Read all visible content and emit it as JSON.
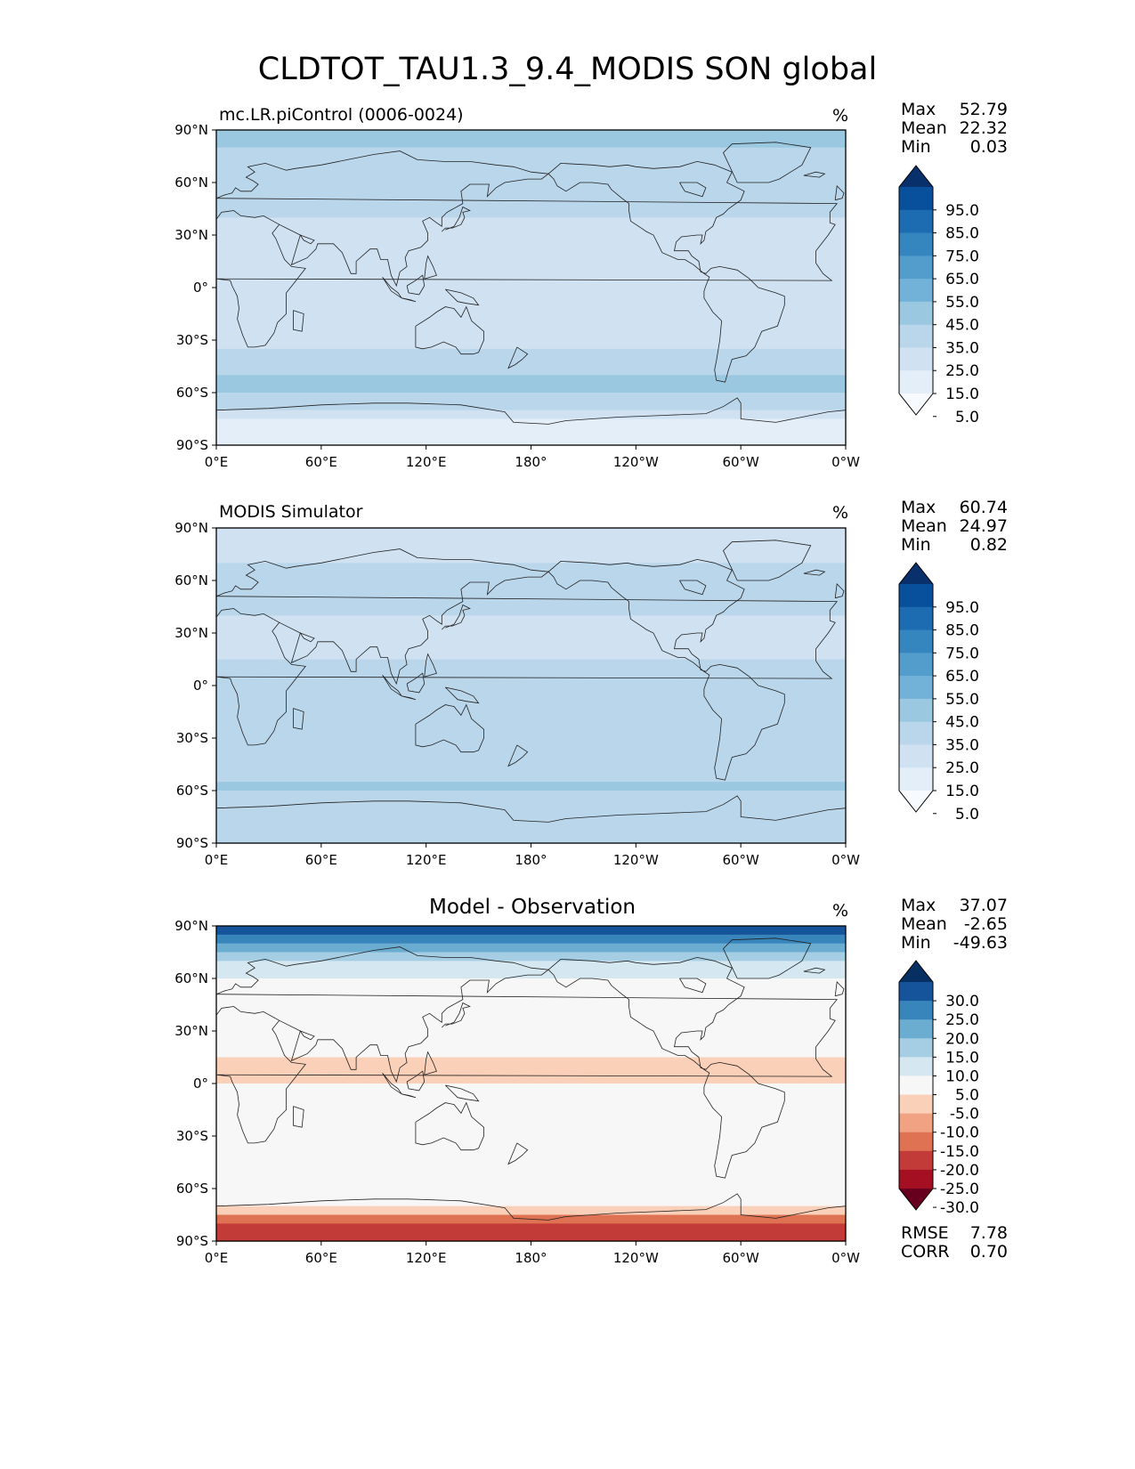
{
  "title": "CLDTOT_TAU1.3_9.4_MODIS SON global",
  "colors": {
    "blues": [
      "#f7fbff",
      "#e3eef9",
      "#d0e2f2",
      "#bad6eb",
      "#9ac8e0",
      "#73b2d8",
      "#529dcc",
      "#3585bf",
      "#1d6cb1",
      "#08509b",
      "#08306b"
    ],
    "diverging": [
      "#67001f",
      "#a50f22",
      "#c23b38",
      "#de7253",
      "#f0a283",
      "#fbd0b9",
      "#f7f7f7",
      "#d5e7f0",
      "#a5cde3",
      "#6bacd1",
      "#3885bc",
      "#15549b",
      "#053061"
    ],
    "coast": "#222222"
  },
  "x_ticks": [
    "0°E",
    "60°E",
    "120°E",
    "180°",
    "120°W",
    "60°W",
    "0°W"
  ],
  "y_ticks": [
    "90°N",
    "60°N",
    "30°N",
    "0°",
    "30°S",
    "60°S",
    "90°S"
  ],
  "panels": [
    {
      "id": "model",
      "title": "mc.LR.piControl (0006-0024)",
      "unit": "%",
      "stats": [
        {
          "name": "Max",
          "value": "52.79"
        },
        {
          "name": "Mean",
          "value": "22.32"
        },
        {
          "name": "Min",
          "value": "0.03"
        }
      ],
      "colorbar_ticks": [
        "95.0",
        "85.0",
        "75.0",
        "65.0",
        "55.0",
        "45.0",
        "35.0",
        "25.0",
        "15.0",
        "5.0"
      ]
    },
    {
      "id": "obs",
      "title": "MODIS Simulator",
      "unit": "%",
      "stats": [
        {
          "name": "Max",
          "value": "60.74"
        },
        {
          "name": "Mean",
          "value": "24.97"
        },
        {
          "name": "Min",
          "value": "0.82"
        }
      ],
      "colorbar_ticks": [
        "95.0",
        "85.0",
        "75.0",
        "65.0",
        "55.0",
        "45.0",
        "35.0",
        "25.0",
        "15.0",
        "5.0"
      ]
    },
    {
      "id": "diff",
      "title": "Model - Observation",
      "unit": "%",
      "stats": [
        {
          "name": "Max",
          "value": "37.07"
        },
        {
          "name": "Mean",
          "value": "-2.65"
        },
        {
          "name": "Min",
          "value": "-49.63"
        }
      ],
      "colorbar_ticks": [
        "30.0",
        "25.0",
        "20.0",
        "15.0",
        "10.0",
        "5.0",
        "-5.0",
        "-10.0",
        "-15.0",
        "-20.0",
        "-25.0",
        "-30.0"
      ],
      "metrics": [
        {
          "name": "RMSE",
          "value": "7.78"
        },
        {
          "name": "CORR",
          "value": "0.70"
        }
      ]
    }
  ],
  "chart_data": [
    {
      "type": "heatmap",
      "title": "mc.LR.piControl (0006-0024)",
      "xlabel": "",
      "ylabel": "",
      "xlim": [
        0,
        360
      ],
      "ylim": [
        -90,
        90
      ],
      "colorbar_levels": [
        5,
        15,
        25,
        35,
        45,
        55,
        65,
        75,
        85,
        95
      ],
      "zonal_mean_profile": [
        {
          "lat": 80,
          "value": 35
        },
        {
          "lat": 60,
          "value": 30
        },
        {
          "lat": 45,
          "value": 28
        },
        {
          "lat": 30,
          "value": 18
        },
        {
          "lat": 15,
          "value": 20
        },
        {
          "lat": 0,
          "value": 25
        },
        {
          "lat": -15,
          "value": 22
        },
        {
          "lat": -30,
          "value": 24
        },
        {
          "lat": -45,
          "value": 28
        },
        {
          "lat": -55,
          "value": 38
        },
        {
          "lat": -65,
          "value": 30
        },
        {
          "lat": -80,
          "value": 5
        }
      ],
      "stats": {
        "max": 52.79,
        "mean": 22.32,
        "min": 0.03
      }
    },
    {
      "type": "heatmap",
      "title": "MODIS Simulator",
      "xlabel": "",
      "ylabel": "",
      "xlim": [
        0,
        360
      ],
      "ylim": [
        -90,
        90
      ],
      "colorbar_levels": [
        5,
        15,
        25,
        35,
        45,
        55,
        65,
        75,
        85,
        95
      ],
      "zonal_mean_profile": [
        {
          "lat": 80,
          "value": 22
        },
        {
          "lat": 60,
          "value": 28
        },
        {
          "lat": 45,
          "value": 26
        },
        {
          "lat": 30,
          "value": 20
        },
        {
          "lat": 15,
          "value": 24
        },
        {
          "lat": 0,
          "value": 30
        },
        {
          "lat": -15,
          "value": 26
        },
        {
          "lat": -30,
          "value": 26
        },
        {
          "lat": -45,
          "value": 30
        },
        {
          "lat": -55,
          "value": 36
        },
        {
          "lat": -65,
          "value": 34
        },
        {
          "lat": -80,
          "value": 28
        }
      ],
      "stats": {
        "max": 60.74,
        "mean": 24.97,
        "min": 0.82
      }
    },
    {
      "type": "heatmap",
      "title": "Model - Observation",
      "xlabel": "",
      "ylabel": "",
      "xlim": [
        0,
        360
      ],
      "ylim": [
        -90,
        90
      ],
      "colorbar_levels": [
        -30,
        -25,
        -20,
        -15,
        -10,
        -5,
        5,
        10,
        15,
        20,
        25,
        30
      ],
      "zonal_mean_profile": [
        {
          "lat": 85,
          "value": 25
        },
        {
          "lat": 70,
          "value": 8
        },
        {
          "lat": 55,
          "value": 2
        },
        {
          "lat": 30,
          "value": -2
        },
        {
          "lat": 10,
          "value": -6
        },
        {
          "lat": 0,
          "value": -5
        },
        {
          "lat": -15,
          "value": -4
        },
        {
          "lat": -30,
          "value": -2
        },
        {
          "lat": -50,
          "value": 2
        },
        {
          "lat": -60,
          "value": 5
        },
        {
          "lat": -70,
          "value": -4
        },
        {
          "lat": -80,
          "value": -22
        }
      ],
      "stats": {
        "max": 37.07,
        "mean": -2.65,
        "min": -49.63,
        "rmse": 7.78,
        "corr": 0.7
      }
    }
  ]
}
